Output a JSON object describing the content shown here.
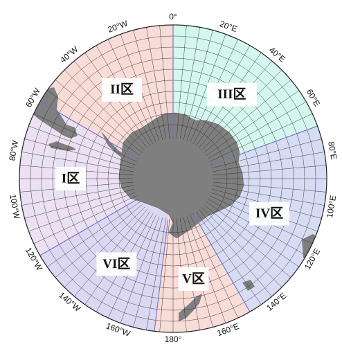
{
  "map": {
    "projection": "south-polar-stereographic",
    "longitude_labels": [
      "0°",
      "20°E",
      "40°E",
      "60°E",
      "80°E",
      "100°E",
      "120°E",
      "140°E",
      "160°E",
      "180°",
      "160°W",
      "140°W",
      "120°W",
      "100°W",
      "80°W",
      "60°W",
      "40°W",
      "20°W"
    ],
    "regions": [
      {
        "label": "I区",
        "lon_from": -120,
        "lon_to": -60,
        "color": "#ece0f3"
      },
      {
        "label": "II区",
        "lon_from": -60,
        "lon_to": 0,
        "color": "#f8dcd8"
      },
      {
        "label": "III区",
        "lon_from": 0,
        "lon_to": 70,
        "color": "#d4f6ee"
      },
      {
        "label": "IV区",
        "lon_from": 70,
        "lon_to": 150,
        "color": "#d6dcf4"
      },
      {
        "label": "V区",
        "lon_from": 150,
        "lon_to": 187,
        "color": "#f8dcd8"
      },
      {
        "label": "VI区",
        "lon_from": 187,
        "lon_to": 240,
        "color": "#dcd8f3"
      }
    ],
    "land_color": "#7f7f7f",
    "grid_color": "#2a2a2a",
    "boundary_color": "#7070c0"
  }
}
